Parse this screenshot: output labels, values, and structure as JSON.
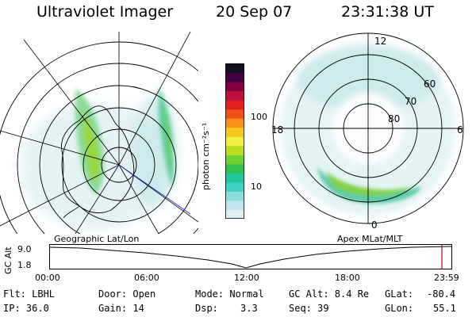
{
  "header": {
    "instrument": "Ultraviolet Imager",
    "date": "20 Sep 07",
    "time": "23:31:38 UT"
  },
  "geographic_panel": {
    "label": "Geographic Lat/Lon"
  },
  "apex_panel": {
    "label": "Apex MLat/MLT",
    "lat_labels": [
      "60",
      "70",
      "80"
    ],
    "mlt_labels": [
      "12",
      "18",
      "6",
      "0"
    ]
  },
  "colorbar": {
    "unit_label": "photon cm⁻²s⁻¹",
    "ticks": [
      "100",
      "10"
    ],
    "colors": [
      "#dff0f0",
      "#bfe6ea",
      "#8fdcdc",
      "#40d0c8",
      "#20c8a0",
      "#30c050",
      "#70d030",
      "#b8e020",
      "#f0f040",
      "#f8c820",
      "#f89018",
      "#f05018",
      "#e02020",
      "#c01040",
      "#800040",
      "#400040",
      "#101020"
    ]
  },
  "altitude_strip": {
    "ylabel": "GC Alt",
    "ymax": "9.0",
    "ymin": "1.8",
    "x_ticks": [
      "00:00",
      "06:00",
      "12:00",
      "18:00",
      "23:59"
    ],
    "current_marker_color": "#c00000"
  },
  "status": {
    "flt": "Flt: LBHL",
    "ip": "IP: 36.0",
    "door": "Door: Open",
    "gain": "Gain: 14",
    "mode": "Mode: Normal",
    "dsp_label": "Dsp:",
    "dsp_value": "3.3",
    "gc_alt": "GC Alt: 8.4 Re",
    "seq": "Seq: 39",
    "glat_label": "GLat:",
    "glat_value": "-80.4",
    "glon_label": "GLon:",
    "glon_value": "55.1"
  }
}
